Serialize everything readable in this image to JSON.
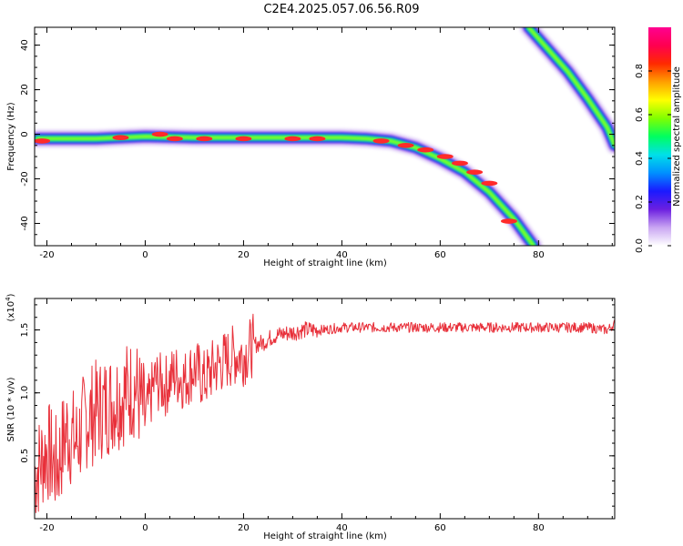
{
  "title": "C2E4.2025.057.06.56.R09",
  "chart_data": [
    {
      "type": "heatmap",
      "xlabel": "Height of straight line (km)",
      "ylabel": "Frequency (Hz)",
      "xlim": [
        -22.5,
        95.5
      ],
      "ylim": [
        -50,
        48
      ],
      "xticks": [
        -20,
        0,
        20,
        40,
        60,
        80
      ],
      "yticks": [
        -40,
        -20,
        0,
        20,
        40
      ],
      "colorbar": {
        "label": "Normalized spectral amplitude",
        "range": [
          0,
          1
        ],
        "ticks": [
          0.0,
          0.2,
          0.4,
          0.6,
          0.8
        ],
        "tick_labels": [
          "0.0",
          "0.2",
          "0.4",
          "0.6",
          "0.8"
        ],
        "colors": [
          "#ffffff",
          "#c9a5f2",
          "#6b1fe0",
          "#1a1aff",
          "#0090ff",
          "#00e0e8",
          "#00ff60",
          "#80ff00",
          "#ffff00",
          "#ffa000",
          "#ff2a00",
          "#ff0050",
          "#ff0090"
        ]
      },
      "band_path": {
        "x": [
          -22,
          -10,
          0,
          10,
          20,
          30,
          40,
          45,
          50,
          55,
          60,
          65,
          70,
          75,
          79
        ],
        "y": [
          -2,
          -2,
          -1,
          -1.5,
          -1.5,
          -1.5,
          -1.5,
          -2,
          -3,
          -6,
          -11,
          -17,
          -26,
          -38,
          -50
        ]
      },
      "band2_path": {
        "x": [
          78,
          82,
          86,
          90,
          94,
          95.5
        ],
        "y": [
          48,
          38,
          28,
          16,
          3,
          -5
        ]
      },
      "hot_spots": [
        {
          "x": -21,
          "y": -3
        },
        {
          "x": -5,
          "y": -1.5
        },
        {
          "x": 3,
          "y": 0
        },
        {
          "x": 6,
          "y": -2
        },
        {
          "x": 12,
          "y": -2
        },
        {
          "x": 20,
          "y": -2
        },
        {
          "x": 30,
          "y": -2
        },
        {
          "x": 35,
          "y": -2
        },
        {
          "x": 48,
          "y": -3
        },
        {
          "x": 53,
          "y": -5
        },
        {
          "x": 57,
          "y": -7
        },
        {
          "x": 61,
          "y": -10
        },
        {
          "x": 64,
          "y": -13
        },
        {
          "x": 67,
          "y": -17
        },
        {
          "x": 70,
          "y": -22
        },
        {
          "x": 74,
          "y": -39
        }
      ]
    },
    {
      "type": "line",
      "xlabel": "Height of straight line (km)",
      "ylabel": "SNR (10 * v/v)",
      "yscale_label": "(x10",
      "yscale_exp": "4",
      "xlim": [
        -22.5,
        95.5
      ],
      "ylim": [
        0,
        1.75
      ],
      "xticks": [
        -20,
        0,
        20,
        40,
        60,
        80
      ],
      "yticks": [
        0.5,
        1.0,
        1.5
      ],
      "ytick_labels": [
        "0.5",
        "1.0",
        "1.5"
      ],
      "color": "#e8303a",
      "x": [
        -22.5,
        -20,
        -18,
        -16,
        -14,
        -12,
        -10,
        -8,
        -6,
        -4,
        -2,
        0,
        2,
        4,
        6,
        8,
        10,
        12,
        14,
        16,
        18,
        20,
        22,
        24,
        26,
        28,
        30,
        32,
        34,
        36,
        38,
        40,
        45,
        50,
        55,
        60,
        65,
        70,
        75,
        80,
        85,
        90,
        94,
        95.5
      ],
      "y": [
        0.35,
        0.55,
        0.4,
        0.7,
        0.6,
        0.8,
        0.85,
        0.9,
        0.95,
        1.0,
        1.05,
        0.8,
        1.1,
        1.05,
        1.15,
        1.1,
        1.2,
        1.1,
        1.2,
        1.25,
        1.3,
        1.3,
        1.38,
        1.4,
        1.45,
        1.47,
        1.48,
        1.5,
        1.5,
        1.5,
        1.51,
        1.52,
        1.52,
        1.52,
        1.52,
        1.52,
        1.52,
        1.52,
        1.52,
        1.52,
        1.52,
        1.52,
        1.5,
        1.55
      ]
    }
  ]
}
